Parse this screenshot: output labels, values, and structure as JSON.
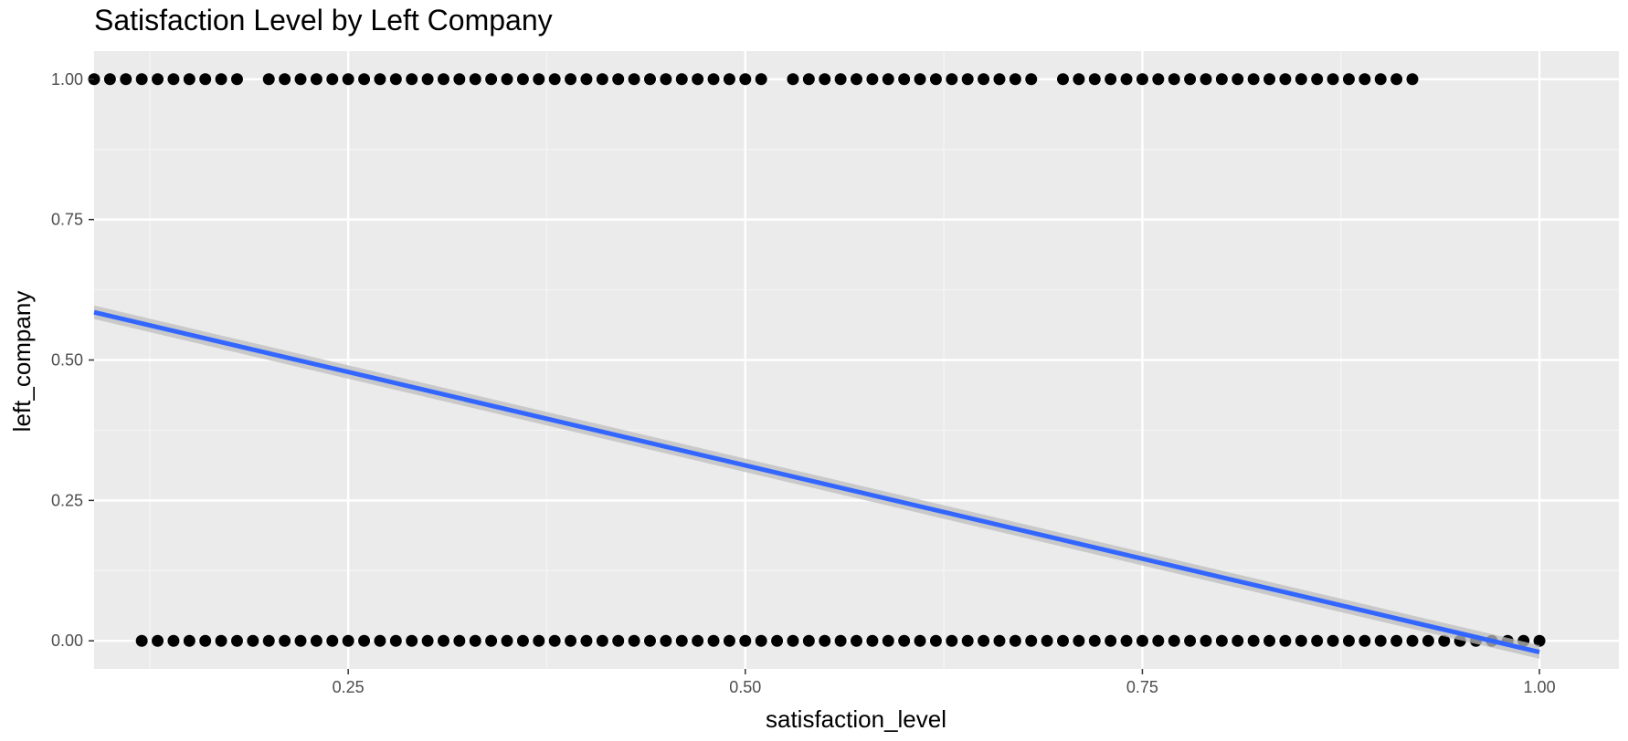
{
  "chart_data": {
    "type": "scatter",
    "title": "Satisfaction Level by Left Company",
    "xlabel": "satisfaction_level",
    "ylabel": "left_company",
    "xlim": [
      0.09,
      1.05
    ],
    "ylim": [
      -0.05,
      1.05
    ],
    "x_ticks": [
      0.25,
      0.5,
      0.75,
      1.0
    ],
    "x_tick_labels": [
      "0.25",
      "0.50",
      "0.75",
      "1.00"
    ],
    "y_ticks": [
      0.0,
      0.25,
      0.5,
      0.75,
      1.0
    ],
    "y_tick_labels": [
      "0.00",
      "0.25",
      "0.50",
      "0.75",
      "1.00"
    ],
    "grid": true,
    "legend": "none",
    "series": [
      {
        "name": "",
        "kind": "points",
        "color": "#000000",
        "points": [
          [
            0.09,
            1
          ],
          [
            0.1,
            1
          ],
          [
            0.11,
            1
          ],
          [
            0.12,
            1
          ],
          [
            0.13,
            1
          ],
          [
            0.14,
            1
          ],
          [
            0.15,
            1
          ],
          [
            0.16,
            1
          ],
          [
            0.17,
            1
          ],
          [
            0.18,
            1
          ],
          [
            0.2,
            1
          ],
          [
            0.21,
            1
          ],
          [
            0.22,
            1
          ],
          [
            0.23,
            1
          ],
          [
            0.24,
            1
          ],
          [
            0.25,
            1
          ],
          [
            0.26,
            1
          ],
          [
            0.27,
            1
          ],
          [
            0.28,
            1
          ],
          [
            0.29,
            1
          ],
          [
            0.3,
            1
          ],
          [
            0.31,
            1
          ],
          [
            0.32,
            1
          ],
          [
            0.33,
            1
          ],
          [
            0.34,
            1
          ],
          [
            0.35,
            1
          ],
          [
            0.36,
            1
          ],
          [
            0.37,
            1
          ],
          [
            0.38,
            1
          ],
          [
            0.39,
            1
          ],
          [
            0.4,
            1
          ],
          [
            0.41,
            1
          ],
          [
            0.42,
            1
          ],
          [
            0.43,
            1
          ],
          [
            0.44,
            1
          ],
          [
            0.45,
            1
          ],
          [
            0.46,
            1
          ],
          [
            0.47,
            1
          ],
          [
            0.48,
            1
          ],
          [
            0.49,
            1
          ],
          [
            0.5,
            1
          ],
          [
            0.51,
            1
          ],
          [
            0.53,
            1
          ],
          [
            0.54,
            1
          ],
          [
            0.55,
            1
          ],
          [
            0.56,
            1
          ],
          [
            0.57,
            1
          ],
          [
            0.58,
            1
          ],
          [
            0.59,
            1
          ],
          [
            0.6,
            1
          ],
          [
            0.61,
            1
          ],
          [
            0.62,
            1
          ],
          [
            0.63,
            1
          ],
          [
            0.64,
            1
          ],
          [
            0.65,
            1
          ],
          [
            0.66,
            1
          ],
          [
            0.67,
            1
          ],
          [
            0.68,
            1
          ],
          [
            0.7,
            1
          ],
          [
            0.71,
            1
          ],
          [
            0.72,
            1
          ],
          [
            0.73,
            1
          ],
          [
            0.74,
            1
          ],
          [
            0.75,
            1
          ],
          [
            0.76,
            1
          ],
          [
            0.77,
            1
          ],
          [
            0.78,
            1
          ],
          [
            0.79,
            1
          ],
          [
            0.8,
            1
          ],
          [
            0.81,
            1
          ],
          [
            0.82,
            1
          ],
          [
            0.83,
            1
          ],
          [
            0.84,
            1
          ],
          [
            0.85,
            1
          ],
          [
            0.86,
            1
          ],
          [
            0.87,
            1
          ],
          [
            0.88,
            1
          ],
          [
            0.89,
            1
          ],
          [
            0.9,
            1
          ],
          [
            0.91,
            1
          ],
          [
            0.92,
            1
          ],
          [
            0.12,
            0
          ],
          [
            0.13,
            0
          ],
          [
            0.14,
            0
          ],
          [
            0.15,
            0
          ],
          [
            0.16,
            0
          ],
          [
            0.17,
            0
          ],
          [
            0.18,
            0
          ],
          [
            0.19,
            0
          ],
          [
            0.2,
            0
          ],
          [
            0.21,
            0
          ],
          [
            0.22,
            0
          ],
          [
            0.23,
            0
          ],
          [
            0.24,
            0
          ],
          [
            0.25,
            0
          ],
          [
            0.26,
            0
          ],
          [
            0.27,
            0
          ],
          [
            0.28,
            0
          ],
          [
            0.29,
            0
          ],
          [
            0.3,
            0
          ],
          [
            0.31,
            0
          ],
          [
            0.32,
            0
          ],
          [
            0.33,
            0
          ],
          [
            0.34,
            0
          ],
          [
            0.35,
            0
          ],
          [
            0.36,
            0
          ],
          [
            0.37,
            0
          ],
          [
            0.38,
            0
          ],
          [
            0.39,
            0
          ],
          [
            0.4,
            0
          ],
          [
            0.41,
            0
          ],
          [
            0.42,
            0
          ],
          [
            0.43,
            0
          ],
          [
            0.44,
            0
          ],
          [
            0.45,
            0
          ],
          [
            0.46,
            0
          ],
          [
            0.47,
            0
          ],
          [
            0.48,
            0
          ],
          [
            0.49,
            0
          ],
          [
            0.5,
            0
          ],
          [
            0.51,
            0
          ],
          [
            0.52,
            0
          ],
          [
            0.53,
            0
          ],
          [
            0.54,
            0
          ],
          [
            0.55,
            0
          ],
          [
            0.56,
            0
          ],
          [
            0.57,
            0
          ],
          [
            0.58,
            0
          ],
          [
            0.59,
            0
          ],
          [
            0.6,
            0
          ],
          [
            0.61,
            0
          ],
          [
            0.62,
            0
          ],
          [
            0.63,
            0
          ],
          [
            0.64,
            0
          ],
          [
            0.65,
            0
          ],
          [
            0.66,
            0
          ],
          [
            0.67,
            0
          ],
          [
            0.68,
            0
          ],
          [
            0.69,
            0
          ],
          [
            0.7,
            0
          ],
          [
            0.71,
            0
          ],
          [
            0.72,
            0
          ],
          [
            0.73,
            0
          ],
          [
            0.74,
            0
          ],
          [
            0.75,
            0
          ],
          [
            0.76,
            0
          ],
          [
            0.77,
            0
          ],
          [
            0.78,
            0
          ],
          [
            0.79,
            0
          ],
          [
            0.8,
            0
          ],
          [
            0.81,
            0
          ],
          [
            0.82,
            0
          ],
          [
            0.83,
            0
          ],
          [
            0.84,
            0
          ],
          [
            0.85,
            0
          ],
          [
            0.86,
            0
          ],
          [
            0.87,
            0
          ],
          [
            0.88,
            0
          ],
          [
            0.89,
            0
          ],
          [
            0.9,
            0
          ],
          [
            0.91,
            0
          ],
          [
            0.92,
            0
          ],
          [
            0.93,
            0
          ],
          [
            0.94,
            0
          ],
          [
            0.95,
            0
          ],
          [
            0.96,
            0
          ],
          [
            0.97,
            0
          ],
          [
            0.98,
            0
          ],
          [
            0.99,
            0
          ],
          [
            1.0,
            0
          ]
        ]
      },
      {
        "name": "",
        "kind": "linear-fit",
        "color": "#3366ff",
        "band_color": "#bdbdbd",
        "x": [
          0.09,
          1.0
        ],
        "y": [
          0.585,
          -0.02
        ],
        "band_halfwidth": 0.012
      }
    ]
  },
  "colors": {
    "panel_background": "#ebebeb",
    "grid_major": "#ffffff",
    "grid_minor": "#f5f5f5",
    "points": "#000000",
    "fit_line": "#3366ff"
  }
}
